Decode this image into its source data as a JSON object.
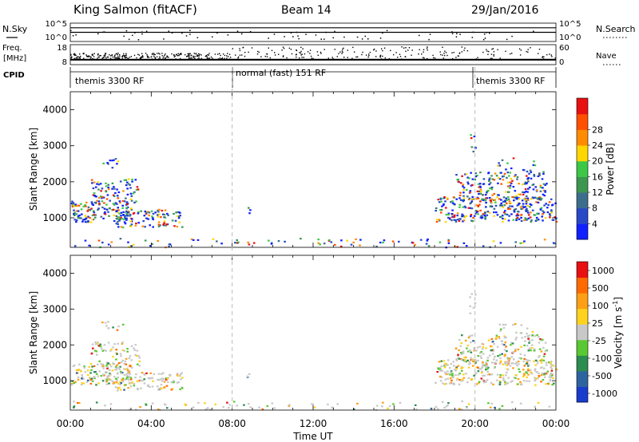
{
  "header": {
    "station": "King Salmon (fitACF)",
    "beam": "Beam 14",
    "date": "29/Jan/2016"
  },
  "side_labels": {
    "nsky": "N.Sky",
    "freq": "Freq.",
    "freq_unit": "[MHz]",
    "cpid": "CPID",
    "nsearch": "N.Search",
    "nave": "Nave"
  },
  "cpid_segments": [
    {
      "label": "themis 3300 RF",
      "start_hour": 0
    },
    {
      "label": "normal (fast) 151 RF",
      "start_hour": 8
    },
    {
      "label": "themis 3300 RF",
      "start_hour": 20
    }
  ],
  "chart_data": [
    {
      "type": "line",
      "panel": "noise",
      "left_ticks": [
        "10^5",
        "10^0"
      ],
      "right_ticks": [
        "10^5",
        "10^0"
      ],
      "x": [
        0,
        2,
        4,
        6,
        8,
        10,
        12,
        14,
        16,
        18,
        20,
        22,
        24
      ],
      "series": [
        {
          "values": [
            1.5,
            1.5,
            1.5,
            1.5,
            1.5,
            1.5,
            1.5,
            1.5,
            1.5,
            1.5,
            1.5,
            1.5,
            1.5
          ]
        },
        {
          "values": [
            1.0,
            1.0,
            1.0,
            1.0,
            1.0,
            1.0,
            1.0,
            1.0,
            1.0,
            1.0,
            1.0,
            1.0,
            1.0
          ]
        }
      ]
    },
    {
      "type": "scatter",
      "panel": "frequency",
      "left_ticks": [
        "18",
        "8"
      ],
      "right_ticks": [
        "60",
        "0"
      ],
      "x": [
        0,
        2,
        4,
        6,
        8,
        10,
        12,
        14,
        16,
        18,
        20,
        22,
        24
      ],
      "series": [
        {
          "values": [
            10.5,
            10.5,
            10.5,
            10.5,
            10.5,
            10.5,
            10.5,
            10.5,
            10.5,
            10.5,
            10.5,
            10.5,
            10.5
          ]
        }
      ]
    },
    {
      "type": "heatmap",
      "panel": "power",
      "ylabel": "Slant Range [km]",
      "ylim": [
        180,
        4500
      ],
      "yticks": [
        "1000",
        "2000",
        "3000",
        "4000"
      ],
      "ytick_values": [
        1000,
        2000,
        3000,
        4000
      ],
      "xlim": [
        0,
        24
      ],
      "colorbar": {
        "label": "Power [dB]",
        "ticks": [
          "4",
          "8",
          "12",
          "16",
          "20",
          "24",
          "28"
        ],
        "colors": [
          "#1020ff",
          "#2848c8",
          "#3c6e8c",
          "#3c9650",
          "#3cc846",
          "#ffd700",
          "#ff8c00",
          "#ff5000",
          "#e81010"
        ]
      },
      "regions": [
        {
          "t0": 0.0,
          "t1": 3.0,
          "r0": 900,
          "r1": 1500,
          "density": 0.6
        },
        {
          "t0": 1.0,
          "t1": 3.4,
          "r0": 1400,
          "r1": 2100,
          "density": 0.35
        },
        {
          "t0": 1.5,
          "t1": 2.6,
          "r0": 2400,
          "r1": 2700,
          "density": 0.25
        },
        {
          "t0": 2.2,
          "t1": 5.5,
          "r0": 750,
          "r1": 1250,
          "density": 0.5
        },
        {
          "t0": 8.7,
          "t1": 8.9,
          "r0": 1100,
          "r1": 1350,
          "density": 0.4
        },
        {
          "t0": 18.0,
          "t1": 24.0,
          "r0": 900,
          "r1": 1600,
          "density": 0.55
        },
        {
          "t0": 19.0,
          "t1": 23.5,
          "r0": 1500,
          "r1": 2300,
          "density": 0.4
        },
        {
          "t0": 21.0,
          "t1": 23.0,
          "r0": 2300,
          "r1": 2700,
          "density": 0.15
        },
        {
          "t0": 19.7,
          "t1": 20.0,
          "r0": 2800,
          "r1": 3500,
          "density": 0.25
        },
        {
          "t0": 0.0,
          "t1": 24.0,
          "r0": 200,
          "r1": 450,
          "density": 0.12
        }
      ]
    },
    {
      "type": "heatmap",
      "panel": "velocity",
      "ylabel": "Slant Range [km]",
      "xlabel": "Time UT",
      "ylim": [
        180,
        4500
      ],
      "yticks": [
        "1000",
        "2000",
        "3000",
        "4000"
      ],
      "ytick_values": [
        1000,
        2000,
        3000,
        4000
      ],
      "xlim": [
        0,
        24
      ],
      "xticks": [
        "00:00",
        "04:00",
        "08:00",
        "12:00",
        "16:00",
        "20:00",
        "00:00"
      ],
      "xtick_values": [
        0,
        4,
        8,
        12,
        16,
        20,
        24
      ],
      "colorbar": {
        "label": "Velocity [m s^-1]",
        "ticks": [
          "1000",
          "500",
          "100",
          "25",
          "-25",
          "-100",
          "-500",
          "-1000"
        ],
        "colors": [
          "#1a3ccc",
          "#2d64a0",
          "#2d8c50",
          "#5ac832",
          "#c8c8c8",
          "#ffd21e",
          "#ffa014",
          "#ff6a00",
          "#e81010"
        ]
      },
      "regions": [
        {
          "t0": 0.0,
          "t1": 3.0,
          "r0": 900,
          "r1": 1500,
          "density": 0.6
        },
        {
          "t0": 1.0,
          "t1": 3.4,
          "r0": 1400,
          "r1": 2100,
          "density": 0.35
        },
        {
          "t0": 1.5,
          "t1": 2.6,
          "r0": 2400,
          "r1": 2700,
          "density": 0.25
        },
        {
          "t0": 2.2,
          "t1": 5.5,
          "r0": 750,
          "r1": 1250,
          "density": 0.5
        },
        {
          "t0": 8.7,
          "t1": 8.9,
          "r0": 1100,
          "r1": 1350,
          "density": 0.4
        },
        {
          "t0": 18.0,
          "t1": 24.0,
          "r0": 900,
          "r1": 1600,
          "density": 0.55
        },
        {
          "t0": 19.0,
          "t1": 23.5,
          "r0": 1500,
          "r1": 2300,
          "density": 0.4
        },
        {
          "t0": 21.0,
          "t1": 23.0,
          "r0": 2300,
          "r1": 2700,
          "density": 0.15
        },
        {
          "t0": 19.7,
          "t1": 20.0,
          "r0": 2800,
          "r1": 3500,
          "density": 0.25
        },
        {
          "t0": 0.0,
          "t1": 24.0,
          "r0": 200,
          "r1": 450,
          "density": 0.12
        }
      ]
    }
  ]
}
